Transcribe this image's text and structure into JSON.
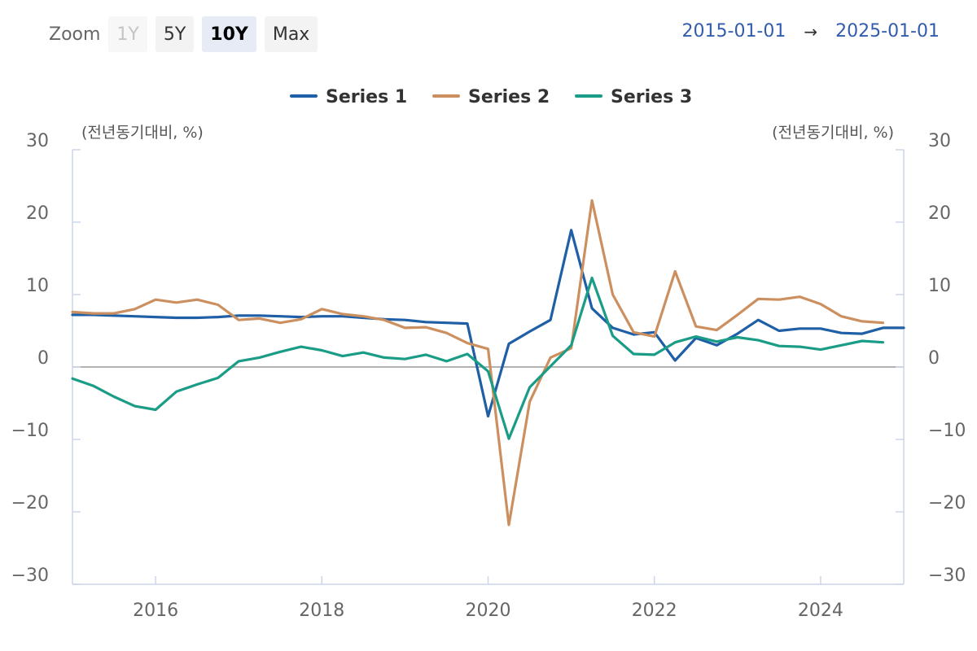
{
  "toolbar": {
    "zoom_label": "Zoom",
    "buttons": [
      {
        "label": "1Y",
        "state": "disabled"
      },
      {
        "label": "5Y",
        "state": "normal"
      },
      {
        "label": "10Y",
        "state": "active"
      },
      {
        "label": "Max",
        "state": "normal"
      }
    ]
  },
  "range": {
    "from": "2015-01-01",
    "arrow": "→",
    "to": "2025-01-01"
  },
  "chart_data": {
    "type": "line",
    "title": "",
    "left_axis_label": "(전년동기대비, %)",
    "right_axis_label": "(전년동기대비, %)",
    "ylim": [
      -30,
      30
    ],
    "y_ticks": [
      30,
      20,
      10,
      0,
      -10,
      -20,
      -30
    ],
    "y_tick_labels": [
      "30",
      "20",
      "10",
      "0",
      "−10",
      "−20",
      "−30"
    ],
    "xlim": [
      2015.0,
      2025.0
    ],
    "x_ticks": [
      2016,
      2018,
      2020,
      2022,
      2024
    ],
    "x_tick_labels": [
      "2016",
      "2018",
      "2020",
      "2022",
      "2024"
    ],
    "legend_position": "top-center",
    "zero_line": true,
    "series": [
      {
        "name": "Series 1",
        "color": "#1f5fa6",
        "points": [
          [
            2015.0,
            7.2
          ],
          [
            2015.25,
            7.2
          ],
          [
            2015.5,
            7.1
          ],
          [
            2015.75,
            7.0
          ],
          [
            2016.0,
            6.9
          ],
          [
            2016.25,
            6.8
          ],
          [
            2016.5,
            6.8
          ],
          [
            2016.75,
            6.9
          ],
          [
            2017.0,
            7.1
          ],
          [
            2017.25,
            7.1
          ],
          [
            2017.5,
            7.0
          ],
          [
            2017.75,
            6.9
          ],
          [
            2018.0,
            7.0
          ],
          [
            2018.25,
            7.0
          ],
          [
            2018.5,
            6.8
          ],
          [
            2018.75,
            6.6
          ],
          [
            2019.0,
            6.5
          ],
          [
            2019.25,
            6.2
          ],
          [
            2019.5,
            6.1
          ],
          [
            2019.75,
            6.0
          ],
          [
            2020.0,
            -6.8
          ],
          [
            2020.25,
            3.2
          ],
          [
            2020.5,
            4.9
          ],
          [
            2020.75,
            6.5
          ],
          [
            2021.0,
            18.9
          ],
          [
            2021.25,
            8.1
          ],
          [
            2021.5,
            5.4
          ],
          [
            2021.75,
            4.5
          ],
          [
            2022.0,
            4.8
          ],
          [
            2022.25,
            0.9
          ],
          [
            2022.5,
            4.0
          ],
          [
            2022.75,
            3.0
          ],
          [
            2023.0,
            4.6
          ],
          [
            2023.25,
            6.5
          ],
          [
            2023.5,
            5.0
          ],
          [
            2023.75,
            5.3
          ],
          [
            2024.0,
            5.3
          ],
          [
            2024.25,
            4.7
          ],
          [
            2024.5,
            4.6
          ],
          [
            2024.75,
            5.4
          ],
          [
            2025.0,
            5.4
          ]
        ]
      },
      {
        "name": "Series 2",
        "color": "#cc9060",
        "points": [
          [
            2015.0,
            7.6
          ],
          [
            2015.25,
            7.4
          ],
          [
            2015.5,
            7.4
          ],
          [
            2015.75,
            8.0
          ],
          [
            2016.0,
            9.3
          ],
          [
            2016.25,
            8.9
          ],
          [
            2016.5,
            9.3
          ],
          [
            2016.75,
            8.6
          ],
          [
            2017.0,
            6.5
          ],
          [
            2017.25,
            6.7
          ],
          [
            2017.5,
            6.1
          ],
          [
            2017.75,
            6.6
          ],
          [
            2018.0,
            8.0
          ],
          [
            2018.25,
            7.3
          ],
          [
            2018.5,
            7.0
          ],
          [
            2018.75,
            6.5
          ],
          [
            2019.0,
            5.4
          ],
          [
            2019.25,
            5.5
          ],
          [
            2019.5,
            4.7
          ],
          [
            2019.75,
            3.3
          ],
          [
            2020.0,
            2.5
          ],
          [
            2020.25,
            -21.8
          ],
          [
            2020.5,
            -4.8
          ],
          [
            2020.75,
            1.3
          ],
          [
            2021.0,
            2.6
          ],
          [
            2021.25,
            23.0
          ],
          [
            2021.5,
            10.0
          ],
          [
            2021.75,
            4.8
          ],
          [
            2022.0,
            4.2
          ],
          [
            2022.25,
            13.2
          ],
          [
            2022.5,
            5.6
          ],
          [
            2022.75,
            5.1
          ],
          [
            2023.0,
            7.2
          ],
          [
            2023.25,
            9.4
          ],
          [
            2023.5,
            9.3
          ],
          [
            2023.75,
            9.7
          ],
          [
            2024.0,
            8.7
          ],
          [
            2024.25,
            7.0
          ],
          [
            2024.5,
            6.3
          ],
          [
            2024.75,
            6.1
          ]
        ]
      },
      {
        "name": "Series 3",
        "color": "#1a9c86",
        "points": [
          [
            2015.0,
            -1.6
          ],
          [
            2015.25,
            -2.6
          ],
          [
            2015.5,
            -4.1
          ],
          [
            2015.75,
            -5.4
          ],
          [
            2016.0,
            -5.9
          ],
          [
            2016.25,
            -3.4
          ],
          [
            2016.5,
            -2.4
          ],
          [
            2016.75,
            -1.5
          ],
          [
            2017.0,
            0.8
          ],
          [
            2017.25,
            1.3
          ],
          [
            2017.5,
            2.1
          ],
          [
            2017.75,
            2.8
          ],
          [
            2018.0,
            2.3
          ],
          [
            2018.25,
            1.5
          ],
          [
            2018.5,
            2.0
          ],
          [
            2018.75,
            1.3
          ],
          [
            2019.0,
            1.1
          ],
          [
            2019.25,
            1.7
          ],
          [
            2019.5,
            0.8
          ],
          [
            2019.75,
            1.8
          ],
          [
            2020.0,
            -0.6
          ],
          [
            2020.25,
            -9.9
          ],
          [
            2020.5,
            -2.8
          ],
          [
            2020.75,
            0.1
          ],
          [
            2021.0,
            3.0
          ],
          [
            2021.25,
            12.3
          ],
          [
            2021.5,
            4.3
          ],
          [
            2021.75,
            1.8
          ],
          [
            2022.0,
            1.7
          ],
          [
            2022.25,
            3.4
          ],
          [
            2022.5,
            4.2
          ],
          [
            2022.75,
            3.5
          ],
          [
            2023.0,
            4.1
          ],
          [
            2023.25,
            3.7
          ],
          [
            2023.5,
            2.9
          ],
          [
            2023.75,
            2.8
          ],
          [
            2024.0,
            2.4
          ],
          [
            2024.25,
            3.0
          ],
          [
            2024.5,
            3.6
          ],
          [
            2024.75,
            3.4
          ]
        ]
      }
    ]
  }
}
